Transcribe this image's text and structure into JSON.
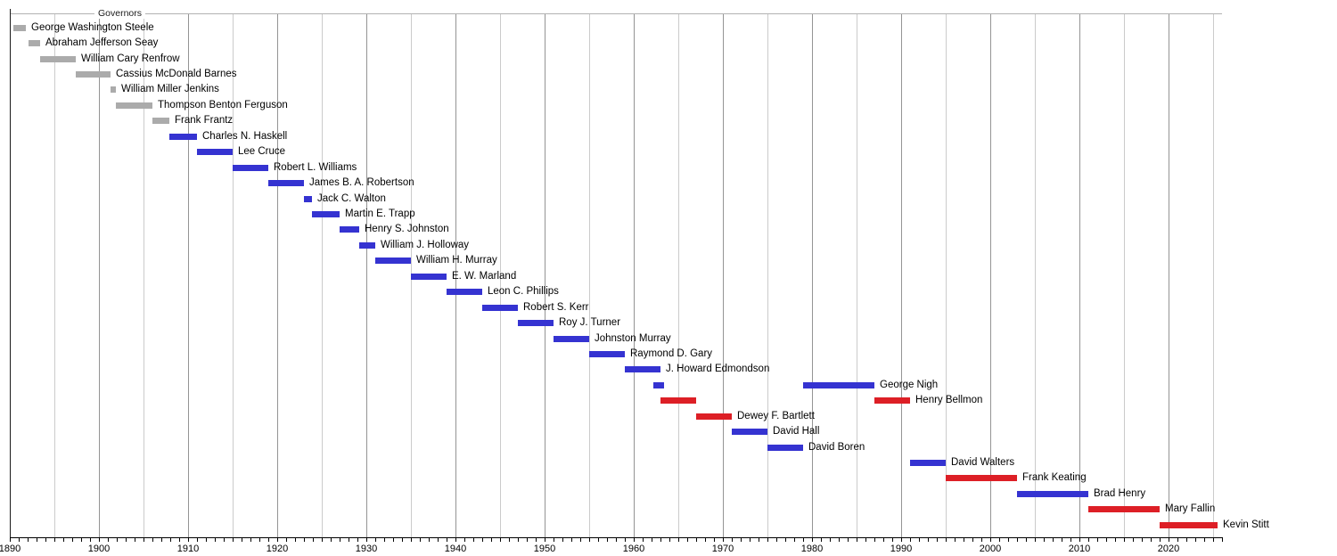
{
  "chart_data": {
    "type": "gantt",
    "title": "Governors",
    "x_axis": {
      "min": 1890,
      "max": 2026,
      "tick_step_years": 1,
      "gridline_step_years": 5,
      "tick_labels": [
        {
          "year": 1890,
          "label": "1890"
        },
        {
          "year": 1900,
          "label": "1900"
        },
        {
          "year": 1910,
          "label": "1910"
        },
        {
          "year": 1920,
          "label": "1920"
        },
        {
          "year": 1930,
          "label": "1930"
        },
        {
          "year": 1940,
          "label": "1940"
        },
        {
          "year": 1950,
          "label": "1950"
        },
        {
          "year": 1960,
          "label": "1960"
        },
        {
          "year": 1970,
          "label": "1970"
        },
        {
          "year": 1980,
          "label": "1980"
        },
        {
          "year": 1990,
          "label": "1990"
        },
        {
          "year": 2000,
          "label": "2000"
        },
        {
          "year": 2010,
          "label": "2010"
        },
        {
          "year": 2020,
          "label": "2020"
        }
      ]
    },
    "bar_colors": {
      "gray": "#ababab",
      "blue": "#3533d1",
      "red": "#dd1f26"
    },
    "rows": [
      {
        "name": "George Washington Steele",
        "color": "gray",
        "terms": [
          [
            1890.4,
            1891.8
          ]
        ]
      },
      {
        "name": "Abraham Jefferson Seay",
        "color": "gray",
        "terms": [
          [
            1892.1,
            1893.4
          ]
        ]
      },
      {
        "name": "William Cary Renfrow",
        "color": "gray",
        "terms": [
          [
            1893.4,
            1897.4
          ]
        ]
      },
      {
        "name": "Cassius McDonald Barnes",
        "color": "gray",
        "terms": [
          [
            1897.4,
            1901.3
          ]
        ]
      },
      {
        "name": "William Miller Jenkins",
        "color": "gray",
        "terms": [
          [
            1901.3,
            1901.9
          ]
        ]
      },
      {
        "name": "Thompson Benton Ferguson",
        "color": "gray",
        "terms": [
          [
            1901.9,
            1906.0
          ]
        ]
      },
      {
        "name": "Frank Frantz",
        "color": "gray",
        "terms": [
          [
            1906.0,
            1907.9
          ]
        ]
      },
      {
        "name": "Charles N. Haskell",
        "color": "blue",
        "terms": [
          [
            1907.9,
            1911.0
          ]
        ]
      },
      {
        "name": "Lee Cruce",
        "color": "blue",
        "terms": [
          [
            1911.0,
            1915.0
          ]
        ]
      },
      {
        "name": "Robert L. Williams",
        "color": "blue",
        "terms": [
          [
            1915.0,
            1919.0
          ]
        ]
      },
      {
        "name": "James B. A. Robertson",
        "color": "blue",
        "terms": [
          [
            1919.0,
            1923.0
          ]
        ]
      },
      {
        "name": "Jack C. Walton",
        "color": "blue",
        "terms": [
          [
            1923.0,
            1923.9
          ]
        ]
      },
      {
        "name": "Martin E. Trapp",
        "color": "blue",
        "terms": [
          [
            1923.9,
            1927.0
          ]
        ]
      },
      {
        "name": "Henry S. Johnston",
        "color": "blue",
        "terms": [
          [
            1927.0,
            1929.2
          ]
        ]
      },
      {
        "name": "William J. Holloway",
        "color": "blue",
        "terms": [
          [
            1929.2,
            1931.0
          ]
        ]
      },
      {
        "name": "William H. Murray",
        "color": "blue",
        "terms": [
          [
            1931.0,
            1935.0
          ]
        ]
      },
      {
        "name": "E. W. Marland",
        "color": "blue",
        "terms": [
          [
            1935.0,
            1939.0
          ]
        ]
      },
      {
        "name": "Leon C. Phillips",
        "color": "blue",
        "terms": [
          [
            1939.0,
            1943.0
          ]
        ]
      },
      {
        "name": "Robert S. Kerr",
        "color": "blue",
        "terms": [
          [
            1943.0,
            1947.0
          ]
        ]
      },
      {
        "name": "Roy J. Turner",
        "color": "blue",
        "terms": [
          [
            1947.0,
            1951.0
          ]
        ]
      },
      {
        "name": "Johnston Murray",
        "color": "blue",
        "terms": [
          [
            1951.0,
            1955.0
          ]
        ]
      },
      {
        "name": "Raymond D. Gary",
        "color": "blue",
        "terms": [
          [
            1955.0,
            1959.0
          ]
        ]
      },
      {
        "name": "J. Howard Edmondson",
        "color": "blue",
        "terms": [
          [
            1959.0,
            1963.0
          ]
        ]
      },
      {
        "name": "George Nigh",
        "color": "blue",
        "terms": [
          [
            1962.2,
            1963.4
          ],
          [
            1979.0,
            1987.0
          ]
        ]
      },
      {
        "name": "Henry Bellmon",
        "color": "red",
        "terms": [
          [
            1963.0,
            1967.0
          ],
          [
            1987.0,
            1991.0
          ]
        ]
      },
      {
        "name": "Dewey F. Bartlett",
        "color": "red",
        "terms": [
          [
            1967.0,
            1971.0
          ]
        ]
      },
      {
        "name": "David Hall",
        "color": "blue",
        "terms": [
          [
            1971.0,
            1975.0
          ]
        ]
      },
      {
        "name": "David Boren",
        "color": "blue",
        "terms": [
          [
            1975.0,
            1979.0
          ]
        ]
      },
      {
        "name": "David Walters",
        "color": "blue",
        "terms": [
          [
            1991.0,
            1995.0
          ]
        ]
      },
      {
        "name": "Frank Keating",
        "color": "red",
        "terms": [
          [
            1995.0,
            2003.0
          ]
        ]
      },
      {
        "name": "Brad Henry",
        "color": "blue",
        "terms": [
          [
            2003.0,
            2011.0
          ]
        ]
      },
      {
        "name": "Mary Fallin",
        "color": "red",
        "terms": [
          [
            2011.0,
            2019.0
          ]
        ]
      },
      {
        "name": "Kevin Stitt",
        "color": "red",
        "terms": [
          [
            2019.0,
            2025.5
          ]
        ]
      }
    ]
  }
}
